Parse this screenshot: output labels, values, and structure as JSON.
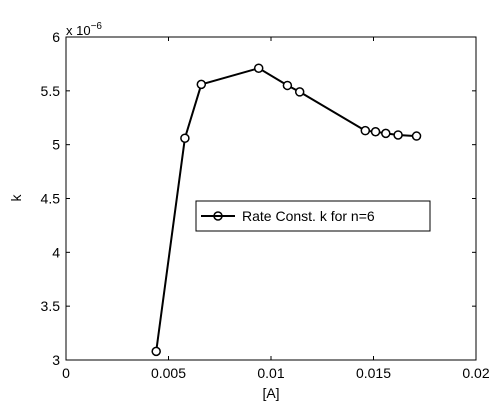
{
  "chart_data": {
    "type": "line",
    "title": "",
    "xlabel": "[A]",
    "ylabel": "k",
    "scale_label": "x 10",
    "scale_exponent": "−6",
    "xlim": [
      0,
      0.02
    ],
    "ylim": [
      3,
      6
    ],
    "x_ticks": [
      0,
      0.005,
      0.01,
      0.015,
      0.02
    ],
    "x_tick_labels": [
      "0",
      "0.005",
      "0.01",
      "0.015",
      "0.02"
    ],
    "y_ticks": [
      3,
      3.5,
      4,
      4.5,
      5,
      5.5,
      6
    ],
    "y_tick_labels": [
      "3",
      "3.5",
      "4",
      "4.5",
      "5",
      "5.5",
      "6"
    ],
    "grid": false,
    "legend_position": "center-right",
    "series": [
      {
        "name": "Rate Const. k for n=6",
        "color": "#000000",
        "marker": "circle",
        "x": [
          0.0044,
          0.0058,
          0.0066,
          0.0094,
          0.0108,
          0.0114,
          0.0146,
          0.0151,
          0.0156,
          0.0162,
          0.0171
        ],
        "y": [
          3.08,
          5.06,
          5.56,
          5.71,
          5.55,
          5.49,
          5.13,
          5.12,
          5.105,
          5.09,
          5.08
        ]
      }
    ]
  }
}
